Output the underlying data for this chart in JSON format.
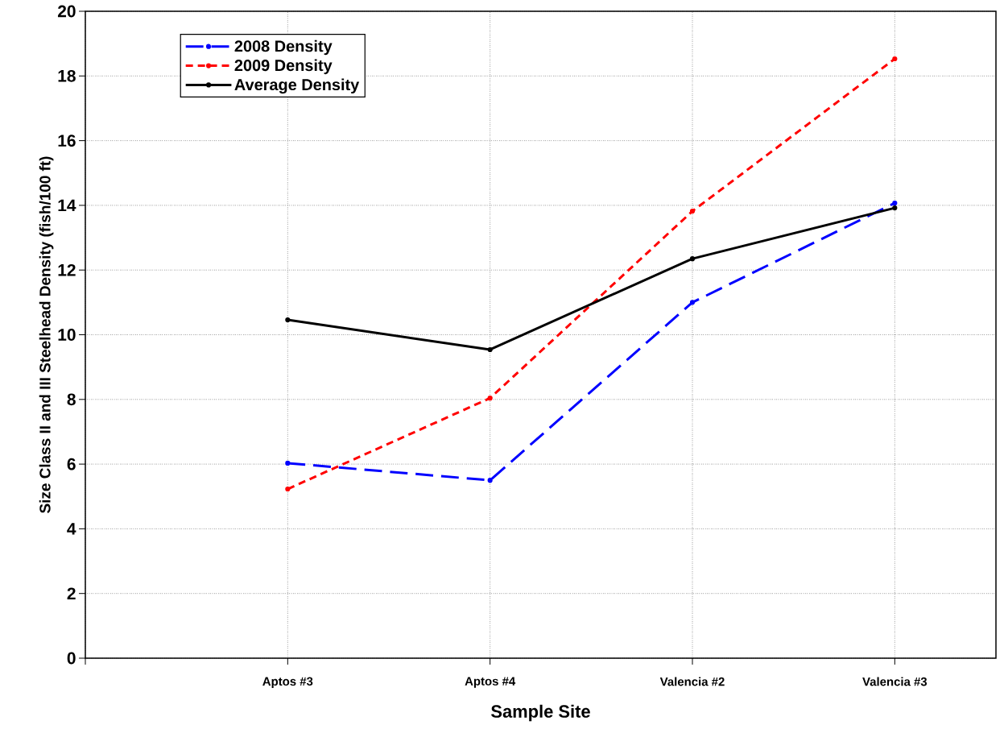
{
  "chart_data": {
    "type": "line",
    "xlabel": "Sample Site",
    "ylabel": "Size Class II and III Steelhead Density (fish/100 ft)",
    "categories": [
      "Aptos #3",
      "Aptos #4",
      "Valencia #2",
      "Valencia #3"
    ],
    "series": [
      {
        "name": "2008 Density",
        "color": "#0000ff",
        "line_style": "dashed",
        "values": [
          6.03,
          5.5,
          11.0,
          14.07
        ]
      },
      {
        "name": "2009 Density",
        "color": "#ff0000",
        "line_style": "dotted",
        "values": [
          5.23,
          8.04,
          13.82,
          18.53
        ]
      },
      {
        "name": "Average Density",
        "color": "#000000",
        "line_style": "solid",
        "values": [
          10.46,
          9.54,
          12.35,
          13.92
        ]
      }
    ],
    "ylim": [
      0,
      20
    ],
    "yticks": [
      0,
      2,
      4,
      6,
      8,
      10,
      12,
      14,
      16,
      18,
      20
    ],
    "grid": true,
    "legend": "top left",
    "marker": "circle"
  }
}
